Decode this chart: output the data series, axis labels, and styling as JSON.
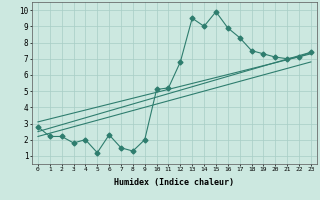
{
  "xlabel": "Humidex (Indice chaleur)",
  "xlim": [
    -0.5,
    23.5
  ],
  "ylim": [
    0.5,
    10.5
  ],
  "xticks": [
    0,
    1,
    2,
    3,
    4,
    5,
    6,
    7,
    8,
    9,
    10,
    11,
    12,
    13,
    14,
    15,
    16,
    17,
    18,
    19,
    20,
    21,
    22,
    23
  ],
  "yticks": [
    1,
    2,
    3,
    4,
    5,
    6,
    7,
    8,
    9,
    10
  ],
  "data_x": [
    0,
    1,
    2,
    3,
    4,
    5,
    6,
    7,
    8,
    9,
    10,
    11,
    12,
    13,
    14,
    15,
    16,
    17,
    18,
    19,
    20,
    21,
    22,
    23
  ],
  "data_y": [
    2.8,
    2.2,
    2.2,
    1.8,
    2.0,
    1.2,
    2.3,
    1.5,
    1.3,
    2.0,
    5.1,
    5.2,
    6.8,
    9.5,
    9.0,
    9.9,
    8.9,
    8.3,
    7.5,
    7.3,
    7.1,
    7.0,
    7.1,
    7.4
  ],
  "line1_x": [
    0,
    23
  ],
  "line1_y": [
    2.5,
    7.4
  ],
  "line2_x": [
    0,
    23
  ],
  "line2_y": [
    3.1,
    7.3
  ],
  "line3_x": [
    0,
    23
  ],
  "line3_y": [
    2.2,
    6.8
  ],
  "line_color": "#2e7d6e",
  "bg_color": "#cce8e0",
  "grid_color": "#a8cec6",
  "marker": "D",
  "marker_size": 2.5,
  "linewidth": 0.8
}
